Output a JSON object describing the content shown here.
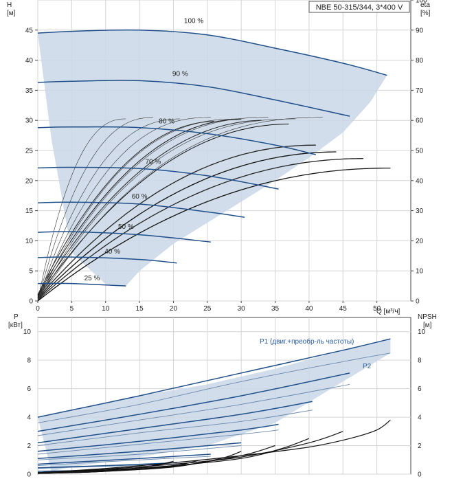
{
  "chart_data": [
    {
      "type": "line",
      "title": "NBE 50-315/344, 3*400 V",
      "ylabel": "H\n[м]",
      "y2label": "eta\n[%]",
      "xlabel": "Q [м³/ч]",
      "xlim": [
        0,
        55
      ],
      "ylim": [
        0,
        50
      ],
      "y2lim": [
        0,
        100
      ],
      "xticks": [
        0,
        5,
        10,
        15,
        20,
        25,
        30,
        35,
        40,
        45,
        50
      ],
      "yticks": [
        0,
        5,
        10,
        15,
        20,
        25,
        30,
        35,
        40,
        45
      ],
      "y2ticks": [
        0,
        10,
        20,
        30,
        40,
        50,
        60,
        70,
        80,
        90,
        100
      ],
      "grid": true,
      "speed_curves": [
        {
          "name": "100 %",
          "x": [
            0,
            5,
            15,
            25,
            35,
            45,
            51.5
          ],
          "y": [
            44.5,
            44.8,
            45.0,
            44.2,
            42.0,
            39.5,
            37.5
          ]
        },
        {
          "name": "90 %",
          "x": [
            0,
            5,
            15,
            25,
            35,
            46
          ],
          "y": [
            36.3,
            36.5,
            36.6,
            35.6,
            33.4,
            30.7
          ]
        },
        {
          "name": "80 %",
          "x": [
            0,
            5,
            15,
            25,
            35,
            41
          ],
          "y": [
            28.8,
            28.9,
            28.8,
            27.8,
            25.9,
            24.3
          ]
        },
        {
          "name": "70 %",
          "x": [
            0,
            5,
            15,
            25,
            35.5
          ],
          "y": [
            22.1,
            22.2,
            22.0,
            20.8,
            18.6
          ]
        },
        {
          "name": "60 %",
          "x": [
            0,
            5,
            15,
            25,
            30.5
          ],
          "y": [
            16.3,
            16.4,
            16.1,
            14.8,
            13.9
          ]
        },
        {
          "name": "50 %",
          "x": [
            0,
            5,
            15,
            25.5
          ],
          "y": [
            11.4,
            11.5,
            11.0,
            9.8
          ]
        },
        {
          "name": "40 %",
          "x": [
            0,
            5,
            15,
            20.5
          ],
          "y": [
            7.2,
            7.3,
            6.9,
            6.3
          ]
        },
        {
          "name": "25 %",
          "x": [
            0,
            5,
            13
          ],
          "y": [
            2.9,
            2.9,
            2.5
          ]
        }
      ],
      "efficiency_curves_peak_eta": [
        46,
        49,
        51,
        53,
        60,
        61,
        61,
        60
      ],
      "envelope": {
        "x": [
          0,
          5,
          15,
          25,
          35,
          45,
          51.5,
          49,
          45,
          40,
          35,
          30,
          25,
          20,
          15,
          13,
          10,
          5,
          2,
          0
        ],
        "y": [
          44.5,
          44.8,
          45.0,
          44.2,
          42.0,
          39.5,
          37.5,
          33.0,
          28.0,
          23.8,
          20.0,
          16.5,
          13.0,
          9.5,
          5.0,
          2.5,
          2.8,
          8.0,
          27.0,
          44.5
        ]
      }
    },
    {
      "type": "line",
      "ylabel": "P\n[кВт]",
      "y2label": "NPSH\n[м]",
      "xlim": [
        0,
        55
      ],
      "ylim": [
        0,
        11
      ],
      "yticks": [
        0,
        2,
        4,
        6,
        8,
        10
      ],
      "y2ticks": [
        0,
        2,
        4,
        6,
        8,
        10
      ],
      "grid": true,
      "labels": [
        "P1 (двиг.+преобр-ль частоты)",
        "P2"
      ],
      "p1_curves": [
        {
          "x": [
            0,
            15,
            30,
            45,
            52
          ],
          "y": [
            4.0,
            5.5,
            7.1,
            8.7,
            9.5
          ]
        },
        {
          "x": [
            0,
            15,
            30,
            46
          ],
          "y": [
            3.0,
            4.2,
            5.5,
            7.1
          ]
        },
        {
          "x": [
            0,
            15,
            30,
            40.5
          ],
          "y": [
            2.2,
            3.2,
            4.2,
            5.1
          ]
        },
        {
          "x": [
            0,
            15,
            30,
            35.5
          ],
          "y": [
            1.6,
            2.3,
            3.1,
            3.5
          ]
        },
        {
          "x": [
            0,
            15,
            30
          ],
          "y": [
            1.1,
            1.6,
            2.2
          ]
        },
        {
          "x": [
            0,
            15,
            25.5
          ],
          "y": [
            0.7,
            1.1,
            1.4
          ]
        },
        {
          "x": [
            0,
            10,
            20.5
          ],
          "y": [
            0.45,
            0.6,
            0.8
          ]
        },
        {
          "x": [
            0,
            13
          ],
          "y": [
            0.2,
            0.3
          ]
        }
      ],
      "p2_curves": [
        {
          "x": [
            0,
            15,
            30,
            45,
            52
          ],
          "y": [
            3.6,
            4.9,
            6.5,
            7.9,
            8.5
          ]
        },
        {
          "x": [
            0,
            15,
            30,
            46
          ],
          "y": [
            2.7,
            3.8,
            4.9,
            6.3
          ]
        },
        {
          "x": [
            0,
            15,
            30,
            40.5
          ],
          "y": [
            2.0,
            2.9,
            3.7,
            4.5
          ]
        },
        {
          "x": [
            0,
            15,
            30,
            35.5
          ],
          "y": [
            1.4,
            2.1,
            2.8,
            3.1
          ]
        },
        {
          "x": [
            0,
            15,
            30
          ],
          "y": [
            1.0,
            1.4,
            2.0
          ]
        },
        {
          "x": [
            0,
            15,
            25.5
          ],
          "y": [
            0.6,
            1.0,
            1.25
          ]
        },
        {
          "x": [
            0,
            10,
            20.5
          ],
          "y": [
            0.4,
            0.55,
            0.7
          ]
        }
      ],
      "npsh_curves": [
        {
          "x": [
            0,
            10,
            20,
            30,
            40,
            46,
            50,
            52
          ],
          "y": [
            0.1,
            0.4,
            0.8,
            1.3,
            1.9,
            2.5,
            3.1,
            3.8
          ]
        },
        {
          "x": [
            0,
            10,
            20,
            30,
            40,
            45
          ],
          "y": [
            0.1,
            0.35,
            0.7,
            1.2,
            2.2,
            3.0
          ]
        },
        {
          "x": [
            0,
            10,
            20,
            30,
            36,
            40
          ],
          "y": [
            0.1,
            0.3,
            0.6,
            1.1,
            1.8,
            2.5
          ]
        },
        {
          "x": [
            0,
            10,
            20,
            30,
            35
          ],
          "y": [
            0.1,
            0.25,
            0.55,
            1.3,
            2.0
          ]
        },
        {
          "x": [
            0,
            10,
            20,
            27,
            30
          ],
          "y": [
            0.05,
            0.2,
            0.5,
            1.1,
            1.6
          ]
        },
        {
          "x": [
            0,
            10,
            20,
            24
          ],
          "y": [
            0.05,
            0.2,
            0.6,
            1.0
          ]
        },
        {
          "x": [
            0,
            10,
            17,
            20
          ],
          "y": [
            0.05,
            0.2,
            0.6,
            0.9
          ]
        },
        {
          "x": [
            0,
            8,
            12
          ],
          "y": [
            0.05,
            0.15,
            0.4
          ]
        }
      ],
      "envelope": {
        "x": [
          0,
          5,
          15,
          25,
          35,
          45,
          52,
          52,
          45,
          35,
          25,
          15,
          5,
          2,
          0
        ],
        "y": [
          4.0,
          4.5,
          5.5,
          6.3,
          7.4,
          8.7,
          9.5,
          8.5,
          6.5,
          3.6,
          2.0,
          1.2,
          0.5,
          0.2,
          4.0
        ]
      }
    }
  ]
}
